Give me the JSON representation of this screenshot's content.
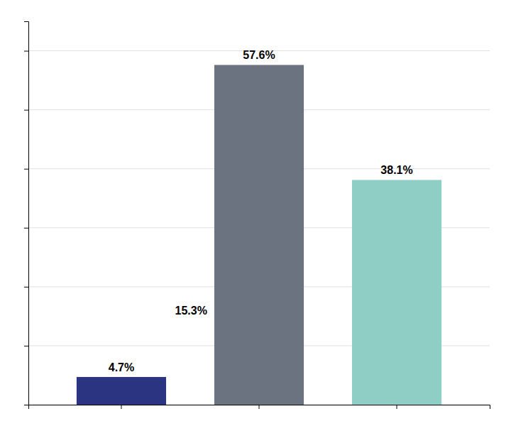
{
  "chart_data": {
    "type": "bar",
    "categories": [
      null,
      null,
      null
    ],
    "values": [
      4.7,
      57.6,
      38.1
    ],
    "colors": [
      "#2B3480",
      "#6B7280",
      "#8ECEC4"
    ],
    "data_labels": true,
    "value_labels": [
      "4.7%",
      "57.6%",
      "38.1%"
    ],
    "annotations": [
      {
        "text": "15.3%",
        "x": 1,
        "y": 15.3
      }
    ],
    "ylim": [
      0,
      65
    ],
    "yticks": [
      0,
      10,
      20,
      30,
      40,
      50,
      60
    ],
    "grid": true,
    "tick_labels": false
  }
}
